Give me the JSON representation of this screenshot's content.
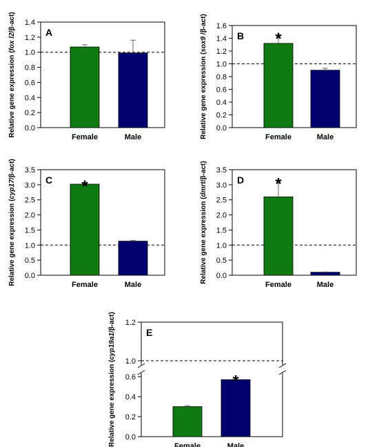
{
  "chart_data": [
    {
      "type": "bar",
      "panel": "A",
      "ylabel_parts": [
        "Relative gene expression (",
        "fox l2",
        "/β-act)"
      ],
      "categories": [
        "Female",
        "Male"
      ],
      "values": [
        1.07,
        0.99
      ],
      "errors": [
        0.03,
        0.17
      ],
      "significant": [
        false,
        false
      ],
      "ylim": [
        0,
        1.4
      ],
      "yticks": [
        "0.0",
        "0.2",
        "0.4",
        "0.6",
        "0.8",
        "1.0",
        "1.2",
        "1.4"
      ],
      "reference_line": 1.0,
      "colors": [
        "#0f7a0f",
        "#00006e"
      ]
    },
    {
      "type": "bar",
      "panel": "B",
      "ylabel_parts": [
        "Relative gene expression (",
        "sox9",
        " /β-act)"
      ],
      "categories": [
        "Female",
        "Male"
      ],
      "values": [
        1.32,
        0.9
      ],
      "errors": [
        0.13,
        0.03
      ],
      "significant": [
        true,
        false
      ],
      "ylim": [
        0,
        1.6
      ],
      "yticks": [
        "0.0",
        "0.2",
        "0.4",
        "0.6",
        "0.8",
        "1.0",
        "1.2",
        "1.4",
        "1.6"
      ],
      "reference_line": 1.0,
      "colors": [
        "#0f7a0f",
        "#00006e"
      ]
    },
    {
      "type": "bar",
      "panel": "C",
      "ylabel_parts": [
        "Relative gene expression (",
        "cyp17",
        "/β-act)"
      ],
      "categories": [
        "Female",
        "Male"
      ],
      "values": [
        3.02,
        1.13
      ],
      "errors": [
        0.05,
        0.02
      ],
      "significant": [
        true,
        false
      ],
      "ylim": [
        0,
        3.5
      ],
      "yticks": [
        "0.0",
        "0.5",
        "1.0",
        "1.5",
        "2.0",
        "2.5",
        "3.0",
        "3.5"
      ],
      "reference_line": 1.0,
      "colors": [
        "#0f7a0f",
        "#00006e"
      ]
    },
    {
      "type": "bar",
      "panel": "D",
      "ylabel_parts": [
        "Relative gene expression (",
        "dmrt",
        "/β-act)"
      ],
      "categories": [
        "Female",
        "Male"
      ],
      "values": [
        2.6,
        0.1
      ],
      "errors": [
        0.55,
        0.01
      ],
      "significant": [
        true,
        false
      ],
      "ylim": [
        0,
        3.5
      ],
      "yticks": [
        "0.0",
        "0.5",
        "1.0",
        "1.5",
        "2.0",
        "2.5",
        "3.0",
        "3.5"
      ],
      "reference_line": 1.0,
      "colors": [
        "#0f7a0f",
        "#00006e"
      ]
    },
    {
      "type": "bar",
      "panel": "E",
      "ylabel_parts": [
        "Relative gene expression (",
        "cyp19a1",
        "/β-act)"
      ],
      "categories": [
        "Female",
        "Male"
      ],
      "values": [
        0.3,
        0.57
      ],
      "errors": [
        0.01,
        0.02
      ],
      "significant": [
        false,
        true
      ],
      "ylim": [
        0,
        1.2
      ],
      "axis_break": [
        0.65,
        0.95
      ],
      "yticks": [
        "0.0",
        "0.2",
        "0.4",
        "0.6",
        "1.0",
        "1.2"
      ],
      "reference_line": 1.0,
      "colors": [
        "#0f7a0f",
        "#00006e"
      ]
    }
  ]
}
